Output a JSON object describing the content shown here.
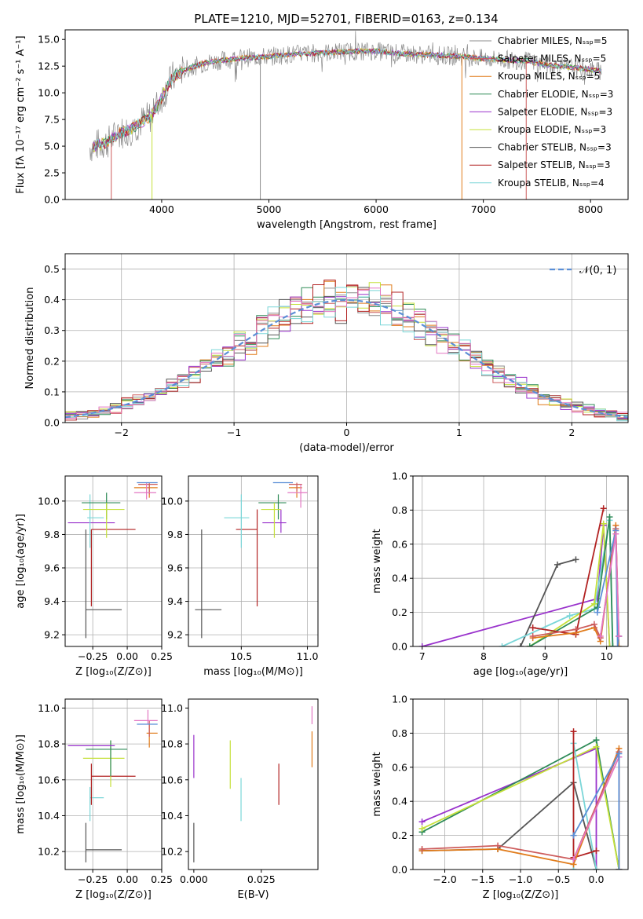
{
  "figure": {
    "title": "PLATE=1210, MJD=52701, FIBERID=0163, z=0.134"
  },
  "colors": {
    "Chabrier MILES": "#8c8c8c",
    "Salpeter MILES": "#cd5c5c",
    "Kroupa MILES": "#e07b1a",
    "Chabrier ELODIE": "#2e8b57",
    "Salpeter ELODIE": "#9932cc",
    "Kroupa ELODIE": "#c5e03a",
    "Chabrier STELIB": "#555555",
    "Salpeter STELIB": "#b22222",
    "Kroupa STELIB": "#7ad6d8",
    "extra_pink": "#e377c2",
    "extra_blue": "#5b8fd6",
    "gauss": "#5b8fd6",
    "grid": "#b0b0b0"
  },
  "chart_data": [
    {
      "id": "spectrum",
      "type": "line",
      "title": "PLATE=1210, MJD=52701, FIBERID=0163, z=0.134",
      "xlabel": "wavelength [Angstrom, rest frame]",
      "ylabel": "Flux [fλ 10⁻¹⁷ erg cm⁻² s⁻¹ A⁻¹]",
      "xlim": [
        3100,
        8350
      ],
      "ylim": [
        0,
        15.9
      ],
      "xticks": [
        4000,
        5000,
        6000,
        7000,
        8000
      ],
      "yticks": [
        0.0,
        2.5,
        5.0,
        7.5,
        10.0,
        12.5,
        15.0
      ],
      "grid": false,
      "legend_position": "right",
      "legend": [
        "Chabrier MILES, Nₛₛₚ=5",
        "Salpeter MILES, Nₛₛₚ=5",
        "Kroupa MILES, Nₛₛₚ=5",
        "Chabrier ELODIE, Nₛₛₚ=3",
        "Salpeter ELODIE, Nₛₛₚ=3",
        "Kroupa ELODIE, Nₛₛₚ=3",
        "Chabrier STELIB, Nₛₛₚ=3",
        "Salpeter STELIB, Nₛₛₚ=3",
        "Kroupa STELIB, Nₛₛₚ=4"
      ],
      "continuum": {
        "x": [
          3330,
          3400,
          3500,
          3600,
          3700,
          3800,
          3900,
          4000,
          4100,
          4200,
          4400,
          4600,
          4800,
          5000,
          5200,
          5400,
          5600,
          5800,
          6000,
          6200,
          6400,
          6600,
          6800,
          7000,
          7200,
          7400,
          7600,
          7800,
          8000,
          8100
        ],
        "y": [
          4.9,
          5.1,
          5.4,
          6.2,
          6.5,
          7.2,
          7.8,
          9.6,
          11.4,
          12.1,
          12.8,
          13.1,
          13.3,
          13.4,
          13.6,
          13.7,
          13.8,
          13.9,
          13.9,
          13.7,
          13.6,
          13.5,
          13.4,
          13.2,
          13.1,
          13.0,
          12.6,
          12.4,
          12.2,
          12.0
        ]
      },
      "spikes": [
        {
          "x": 3530,
          "color": "Salpeter MILES"
        },
        {
          "x": 3910,
          "color": "Kroupa ELODIE"
        },
        {
          "x": 4920,
          "color": "Chabrier MILES"
        },
        {
          "x": 6800,
          "color": "Kroupa MILES"
        },
        {
          "x": 7400,
          "color": "Salpeter MILES"
        }
      ]
    },
    {
      "id": "residuals",
      "type": "histogram",
      "xlabel": "(data-model)/error",
      "ylabel": "Normed distribution",
      "xlim": [
        -2.5,
        2.5
      ],
      "ylim": [
        0,
        0.55
      ],
      "xticks": [
        -2,
        -1,
        0,
        1,
        2
      ],
      "yticks": [
        0.0,
        0.1,
        0.2,
        0.3,
        0.4,
        0.5
      ],
      "grid": true,
      "legend": [
        "𝒩(0, 1)"
      ],
      "legend_position": "top-right",
      "bin_width": 0.1,
      "bin_start": -2.5
    },
    {
      "id": "age_vs_Z",
      "type": "scatter",
      "xlabel": "Z [log₁₀(Z/Z⊙)]",
      "ylabel": "age  [log₁₀(age/yr)]",
      "xlim": [
        -0.45,
        0.25
      ],
      "ylim": [
        9.13,
        10.15
      ],
      "xticks": [
        -0.25,
        0.0,
        0.25
      ],
      "xticklabels": [
        "−0.25",
        "0.00",
        "0.25"
      ],
      "yticks": [
        9.2,
        9.4,
        9.6,
        9.8,
        10.0
      ],
      "grid": true,
      "errorbars": [
        {
          "series": "Chabrier STELIB",
          "x": -0.3,
          "y": 9.35,
          "xlo": 0.0,
          "xhi": 0.26,
          "ylo": 0.17,
          "yhi": 0.48
        },
        {
          "series": "Salpeter STELIB",
          "x": -0.26,
          "y": 9.83,
          "xlo": 0.0,
          "xhi": 0.32,
          "ylo": 0.46,
          "yhi": 0.0
        },
        {
          "series": "Salpeter ELODIE",
          "x": -0.26,
          "y": 9.87,
          "xlo": 0.17,
          "xhi": 0.17,
          "ylo": 0.0,
          "yhi": 0.0
        },
        {
          "series": "Kroupa STELIB",
          "x": -0.27,
          "y": 9.9,
          "xlo": 0.02,
          "xhi": 0.1,
          "ylo": 0.18,
          "yhi": 0.14
        },
        {
          "series": "Chabrier ELODIE",
          "x": -0.15,
          "y": 9.99,
          "xlo": 0.18,
          "xhi": 0.1,
          "ylo": 0.1,
          "yhi": 0.06
        },
        {
          "series": "Kroupa ELODIE",
          "x": -0.15,
          "y": 9.95,
          "xlo": 0.17,
          "xhi": 0.13,
          "ylo": 0.17,
          "yhi": 0.04
        },
        {
          "series": "Kroupa MILES",
          "x": 0.16,
          "y": 10.08,
          "xlo": 0.11,
          "xhi": 0.06,
          "ylo": 0.06,
          "yhi": 0.02
        },
        {
          "series": "Salpeter MILES",
          "x": 0.16,
          "y": 10.1,
          "xlo": 0.08,
          "xhi": 0.06,
          "ylo": 0.06,
          "yhi": 0.01
        },
        {
          "series": "extra_pink",
          "x": 0.14,
          "y": 10.05,
          "xlo": 0.09,
          "xhi": 0.07,
          "ylo": 0.04,
          "yhi": 0.06
        },
        {
          "series": "extra_blue",
          "x": 0.18,
          "y": 10.11,
          "xlo": 0.11,
          "xhi": 0.04,
          "ylo": 0.0,
          "yhi": 0.0
        }
      ]
    },
    {
      "id": "age_vs_mass",
      "type": "scatter",
      "xlabel": "mass [log₁₀(M/M⊙)]",
      "ylabel": "",
      "xlim": [
        10.1,
        11.08
      ],
      "ylim": [
        9.13,
        10.15
      ],
      "xticks": [
        10.5,
        11.0
      ],
      "xticklabels": [
        "10.5",
        "11.0"
      ],
      "yticks": [
        9.2,
        9.4,
        9.6,
        9.8,
        10.0
      ],
      "grid": true,
      "errorbars": [
        {
          "series": "Chabrier STELIB",
          "x": 10.2,
          "y": 9.35,
          "xlo": 0.05,
          "xhi": 0.15,
          "ylo": 0.17,
          "yhi": 0.48
        },
        {
          "series": "Salpeter STELIB",
          "x": 10.62,
          "y": 9.83,
          "xlo": 0.16,
          "xhi": 0.0,
          "ylo": 0.46,
          "yhi": 0.12
        },
        {
          "series": "Kroupa STELIB",
          "x": 10.5,
          "y": 9.9,
          "xlo": 0.13,
          "xhi": 0.06,
          "ylo": 0.18,
          "yhi": 0.14
        },
        {
          "series": "Salpeter ELODIE",
          "x": 10.8,
          "y": 9.87,
          "xlo": 0.14,
          "xhi": 0.04,
          "ylo": 0.06,
          "yhi": 0.08
        },
        {
          "series": "Chabrier ELODIE",
          "x": 10.78,
          "y": 9.99,
          "xlo": 0.15,
          "xhi": 0.06,
          "ylo": 0.1,
          "yhi": 0.05
        },
        {
          "series": "Kroupa ELODIE",
          "x": 10.75,
          "y": 9.95,
          "xlo": 0.1,
          "xhi": 0.05,
          "ylo": 0.17,
          "yhi": 0.04
        },
        {
          "series": "Kroupa MILES",
          "x": 10.92,
          "y": 10.08,
          "xlo": 0.06,
          "xhi": 0.04,
          "ylo": 0.06,
          "yhi": 0.02
        },
        {
          "series": "Salpeter MILES",
          "x": 10.92,
          "y": 10.1,
          "xlo": 0.06,
          "xhi": 0.04,
          "ylo": 0.04,
          "yhi": 0.01
        },
        {
          "series": "extra_pink",
          "x": 10.95,
          "y": 10.05,
          "xlo": 0.1,
          "xhi": 0.05,
          "ylo": 0.09,
          "yhi": 0.05
        },
        {
          "series": "extra_blue",
          "x": 10.87,
          "y": 10.11,
          "xlo": 0.13,
          "xhi": 0.02,
          "ylo": 0.0,
          "yhi": 0.0
        }
      ]
    },
    {
      "id": "mass_weight_vs_age",
      "type": "line",
      "xlabel": "age  [log₁₀(age/yr)]",
      "ylabel": "mass weight",
      "xlim": [
        6.85,
        10.35
      ],
      "ylim": [
        0.0,
        1.0
      ],
      "xticks": [
        7,
        8,
        9,
        10
      ],
      "yticks": [
        0.0,
        0.2,
        0.4,
        0.6,
        0.8,
        1.0
      ],
      "grid": true,
      "series": [
        {
          "name": "Salpeter ELODIE",
          "x": [
            7.0,
            9.85,
            9.95,
            10.05
          ],
          "y": [
            0.0,
            0.28,
            0.71,
            0.0
          ]
        },
        {
          "name": "Chabrier STELIB",
          "x": [
            8.6,
            9.2,
            9.5
          ],
          "y": [
            0.0,
            0.48,
            0.51
          ]
        },
        {
          "name": "Kroupa STELIB",
          "x": [
            8.3,
            9.4,
            9.8,
            10.05,
            10.1
          ],
          "y": [
            0.0,
            0.18,
            0.22,
            0.74,
            0.0
          ]
        },
        {
          "name": "Kroupa ELODIE",
          "x": [
            8.75,
            9.8,
            9.95,
            10.05
          ],
          "y": [
            0.0,
            0.25,
            0.72,
            0.0
          ]
        },
        {
          "name": "Chabrier ELODIE",
          "x": [
            8.75,
            9.85,
            10.05,
            10.1
          ],
          "y": [
            0.0,
            0.23,
            0.76,
            0.0
          ]
        },
        {
          "name": "Salpeter STELIB",
          "x": [
            8.8,
            9.5,
            9.95
          ],
          "y": [
            0.11,
            0.07,
            0.81
          ]
        },
        {
          "name": "Kroupa MILES",
          "x": [
            8.8,
            9.5,
            9.8,
            9.9,
            10.15,
            10.2
          ],
          "y": [
            0.05,
            0.08,
            0.11,
            0.03,
            0.71,
            0.0
          ]
        },
        {
          "name": "Salpeter MILES",
          "x": [
            8.8,
            9.5,
            9.8,
            9.9,
            10.15,
            10.2
          ],
          "y": [
            0.06,
            0.1,
            0.13,
            0.05,
            0.69,
            0.06
          ]
        },
        {
          "name": "extra_blue",
          "x": [
            9.85,
            10.15,
            10.18,
            10.2
          ],
          "y": [
            0.2,
            0.68,
            0.0,
            0.06
          ]
        },
        {
          "name": "extra_pink",
          "x": [
            9.9,
            10.15,
            10.2
          ],
          "y": [
            0.06,
            0.66,
            0.06
          ]
        }
      ]
    },
    {
      "id": "mass_vs_Z",
      "type": "scatter",
      "xlabel": "Z [log₁₀(Z/Z⊙)]",
      "ylabel": "mass [log₁₀(M/M⊙)]",
      "xlim": [
        -0.45,
        0.25
      ],
      "ylim": [
        10.1,
        11.05
      ],
      "xticks": [
        -0.25,
        0.0,
        0.25
      ],
      "xticklabels": [
        "−0.25",
        "0.00",
        "0.25"
      ],
      "yticks": [
        10.2,
        10.4,
        10.6,
        10.8,
        11.0
      ],
      "grid": true,
      "errorbars": [
        {
          "series": "Chabrier STELIB",
          "x": -0.3,
          "y": 10.21,
          "xlo": 0.0,
          "xhi": 0.26,
          "ylo": 0.07,
          "yhi": 0.15
        },
        {
          "series": "Kroupa STELIB",
          "x": -0.27,
          "y": 10.5,
          "xlo": 0.0,
          "xhi": 0.1,
          "ylo": 0.13,
          "yhi": 0.06
        },
        {
          "series": "Salpeter STELIB",
          "x": -0.26,
          "y": 10.62,
          "xlo": 0.0,
          "xhi": 0.32,
          "ylo": 0.16,
          "yhi": 0.07
        },
        {
          "series": "Kroupa ELODIE",
          "x": -0.12,
          "y": 10.72,
          "xlo": 0.2,
          "xhi": 0.1,
          "ylo": 0.16,
          "yhi": 0.1
        },
        {
          "series": "Chabrier ELODIE",
          "x": -0.12,
          "y": 10.77,
          "xlo": 0.18,
          "xhi": 0.12,
          "ylo": 0.15,
          "yhi": 0.05
        },
        {
          "series": "Salpeter ELODIE",
          "x": -0.26,
          "y": 10.79,
          "xlo": 0.17,
          "xhi": 0.17,
          "ylo": 0.0,
          "yhi": 0.0
        },
        {
          "series": "Kroupa MILES",
          "x": 0.16,
          "y": 10.86,
          "xlo": 0.02,
          "xhi": 0.06,
          "ylo": 0.08,
          "yhi": 0.05
        },
        {
          "series": "Salpeter MILES",
          "x": 0.16,
          "y": 10.9,
          "xlo": 0.0,
          "xhi": 0.0,
          "ylo": 0.06,
          "yhi": 0.03
        },
        {
          "series": "extra_pink",
          "x": 0.15,
          "y": 10.93,
          "xlo": 0.1,
          "xhi": 0.07,
          "ylo": 0.02,
          "yhi": 0.06
        },
        {
          "series": "extra_blue",
          "x": 0.16,
          "y": 10.91,
          "xlo": 0.09,
          "xhi": 0.06,
          "ylo": 0.0,
          "yhi": 0.0
        }
      ]
    },
    {
      "id": "mass_vs_ebv",
      "type": "scatter",
      "xlabel": "E(B-V)",
      "ylabel": "",
      "xlim": [
        -0.002,
        0.046
      ],
      "ylim": [
        10.1,
        11.05
      ],
      "xticks": [
        0.0,
        0.025
      ],
      "xticklabels": [
        "0.000",
        "0.025"
      ],
      "yticks": [
        10.2,
        10.4,
        10.6,
        10.8,
        11.0
      ],
      "grid": false,
      "errorbars": [
        {
          "series": "Chabrier STELIB",
          "x": 0.0,
          "y": 10.25,
          "xlo": 0.0,
          "xhi": 0.0,
          "ylo": 0.11,
          "yhi": 0.11
        },
        {
          "series": "Salpeter ELODIE",
          "x": 0.0,
          "y": 10.73,
          "xlo": 0.0,
          "xhi": 0.0,
          "ylo": 0.12,
          "yhi": 0.12
        },
        {
          "series": "Kroupa ELODIE",
          "x": 0.0135,
          "y": 10.69,
          "xlo": 0.0,
          "xhi": 0.0,
          "ylo": 0.14,
          "yhi": 0.13
        },
        {
          "series": "Kroupa STELIB",
          "x": 0.0175,
          "y": 10.49,
          "xlo": 0.0,
          "xhi": 0.0,
          "ylo": 0.12,
          "yhi": 0.12
        },
        {
          "series": "Salpeter STELIB",
          "x": 0.0315,
          "y": 10.58,
          "xlo": 0.0,
          "xhi": 0.0,
          "ylo": 0.12,
          "yhi": 0.11
        },
        {
          "series": "Kroupa MILES",
          "x": 0.0438,
          "y": 10.82,
          "xlo": 0.0,
          "xhi": 0.0,
          "ylo": 0.15,
          "yhi": 0.05
        },
        {
          "series": "extra_pink",
          "x": 0.0438,
          "y": 10.93,
          "xlo": 0.0,
          "xhi": 0.0,
          "ylo": 0.02,
          "yhi": 0.08
        }
      ]
    },
    {
      "id": "mass_weight_vs_Z",
      "type": "line",
      "xlabel": "Z [log₁₀(Z/Z⊙)]",
      "ylabel": "mass weight",
      "xlim": [
        -2.42,
        0.42
      ],
      "ylim": [
        0.0,
        1.0
      ],
      "xticks": [
        -2.0,
        -1.5,
        -1.0,
        -0.5,
        0.0
      ],
      "xticklabels": [
        "−2.0",
        "−1.5",
        "−1.0",
        "−0.5",
        "0.0"
      ],
      "yticks": [
        0.0,
        0.2,
        0.4,
        0.6,
        0.8,
        1.0
      ],
      "grid": true,
      "series": [
        {
          "name": "Salpeter ELODIE",
          "x": [
            -2.3,
            0.0,
            0.0
          ],
          "y": [
            0.28,
            0.71,
            0.0
          ]
        },
        {
          "name": "Chabrier ELODIE",
          "x": [
            -2.3,
            0.0,
            0.3
          ],
          "y": [
            0.22,
            0.76,
            0.0
          ]
        },
        {
          "name": "Kroupa ELODIE",
          "x": [
            -2.3,
            0.0,
            0.3
          ],
          "y": [
            0.24,
            0.72,
            0.0
          ]
        },
        {
          "name": "Chabrier STELIB",
          "x": [
            -2.3,
            -1.3,
            -0.3,
            0.0
          ],
          "y": [
            0.11,
            0.12,
            0.51,
            0.0
          ]
        },
        {
          "name": "Kroupa STELIB",
          "x": [
            -0.3,
            -0.3,
            0.0
          ],
          "y": [
            0.0,
            0.74,
            0.0
          ]
        },
        {
          "name": "Salpeter STELIB",
          "x": [
            -0.3,
            -0.3,
            0.0
          ],
          "y": [
            0.81,
            0.07,
            0.11
          ]
        },
        {
          "name": "Kroupa MILES",
          "x": [
            -2.3,
            -1.3,
            -0.3,
            0.3,
            0.3
          ],
          "y": [
            0.11,
            0.12,
            0.03,
            0.71,
            0.0
          ]
        },
        {
          "name": "Salpeter MILES",
          "x": [
            -2.3,
            -1.3,
            -0.3,
            0.3,
            0.3
          ],
          "y": [
            0.12,
            0.14,
            0.06,
            0.69,
            0.0
          ]
        },
        {
          "name": "extra_pink",
          "x": [
            -0.3,
            0.3
          ],
          "y": [
            0.06,
            0.66
          ]
        },
        {
          "name": "extra_blue",
          "x": [
            -0.3,
            0.3,
            0.3
          ],
          "y": [
            0.2,
            0.68,
            0.0
          ]
        }
      ]
    }
  ]
}
